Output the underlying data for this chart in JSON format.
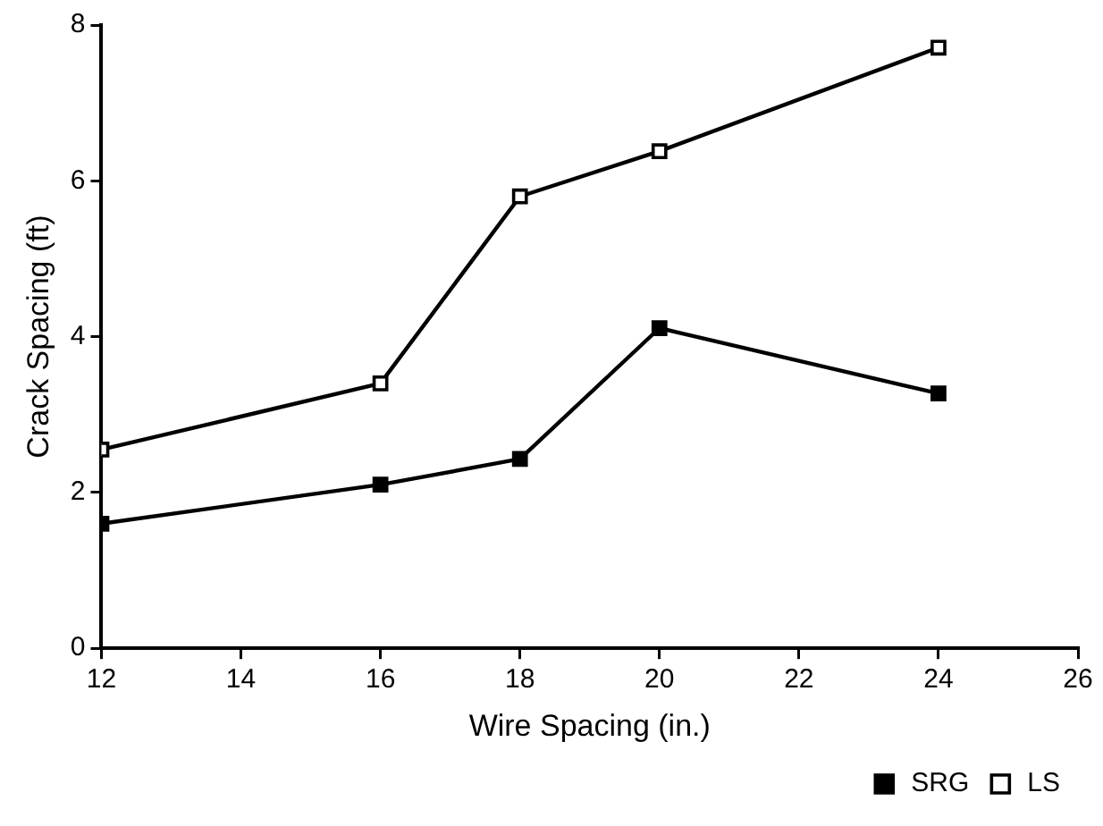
{
  "chart_data": {
    "type": "line",
    "xlabel": "Wire Spacing (in.)",
    "ylabel": "Crack Spacing (ft)",
    "x": [
      12,
      16,
      18,
      20,
      24
    ],
    "xlim": [
      12,
      26
    ],
    "xticks": [
      12,
      14,
      16,
      18,
      20,
      22,
      24,
      26
    ],
    "ylim": [
      0,
      8
    ],
    "yticks": [
      0,
      2,
      4,
      6,
      8
    ],
    "grid": false,
    "legend": "bottom right",
    "marker": "square",
    "line_style": "solid",
    "series": [
      {
        "name": "SRG",
        "color": "#000000",
        "values": [
          1.6,
          2.1,
          2.43,
          4.11,
          3.27
        ]
      },
      {
        "name": "LS",
        "color": "#000000",
        "values": [
          2.55,
          3.4,
          5.8,
          6.38,
          7.71
        ]
      }
    ]
  }
}
